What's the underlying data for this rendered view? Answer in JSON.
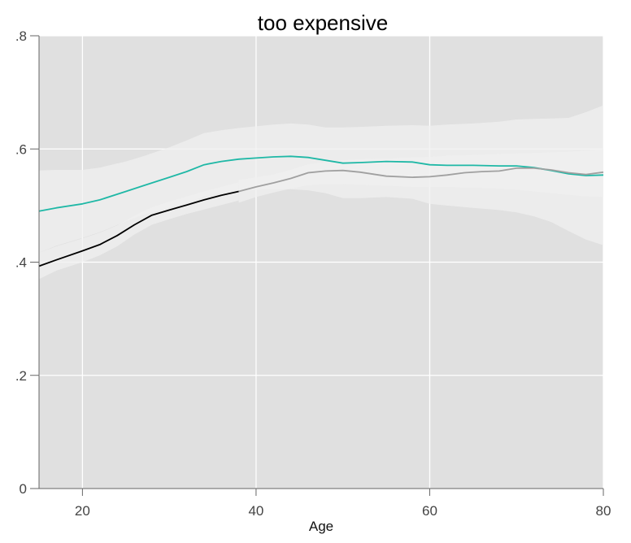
{
  "chart_data": {
    "type": "line",
    "title": "too expensive",
    "xlabel": "Age",
    "ylabel": "",
    "xlim": [
      15,
      80
    ],
    "ylim": [
      0,
      0.8
    ],
    "x_ticks": [
      20,
      40,
      60,
      80
    ],
    "x_tick_labels": [
      "20",
      "40",
      "60",
      "80"
    ],
    "y_ticks": [
      0,
      0.2,
      0.4,
      0.6,
      0.8
    ],
    "y_tick_labels": [
      "0",
      ".2",
      ".4",
      ".6",
      ".8"
    ],
    "grid": true,
    "colors": {
      "panel": "#e0e0e0",
      "grid": "#ffffff",
      "band": "#f0f0f0",
      "teal": "#1fb8a6",
      "black": "#000000",
      "gray": "#a0a0a0"
    },
    "series": [
      {
        "color": "teal",
        "x": [
          15,
          17,
          20,
          22,
          25,
          27,
          30,
          32,
          34,
          36,
          38,
          40,
          42,
          44,
          46,
          48,
          50,
          52,
          55,
          58,
          60,
          62,
          65,
          68,
          70,
          72,
          74,
          76,
          78,
          80
        ],
        "y": [
          0.49,
          0.496,
          0.503,
          0.51,
          0.525,
          0.535,
          0.55,
          0.56,
          0.572,
          0.578,
          0.582,
          0.584,
          0.586,
          0.587,
          0.585,
          0.58,
          0.575,
          0.576,
          0.578,
          0.577,
          0.572,
          0.571,
          0.571,
          0.57,
          0.57,
          0.567,
          0.562,
          0.556,
          0.553,
          0.554
        ],
        "band_upper": [
          0.562,
          0.563,
          0.563,
          0.567,
          0.578,
          0.587,
          0.603,
          0.615,
          0.628,
          0.633,
          0.637,
          0.64,
          0.643,
          0.645,
          0.643,
          0.638,
          0.638,
          0.639,
          0.641,
          0.642,
          0.641,
          0.643,
          0.645,
          0.648,
          0.652,
          0.653,
          0.654,
          0.655,
          0.665,
          0.677
        ],
        "band_lower": [
          0.417,
          0.429,
          0.443,
          0.453,
          0.472,
          0.484,
          0.497,
          0.505,
          0.516,
          0.523,
          0.527,
          0.528,
          0.529,
          0.529,
          0.527,
          0.522,
          0.513,
          0.513,
          0.515,
          0.512,
          0.503,
          0.5,
          0.496,
          0.492,
          0.488,
          0.481,
          0.471,
          0.455,
          0.44,
          0.43
        ]
      },
      {
        "color": "black",
        "x": [
          15,
          17,
          20,
          22,
          24,
          26,
          28,
          30,
          32,
          34,
          36,
          38
        ],
        "y": [
          0.393,
          0.404,
          0.42,
          0.431,
          0.447,
          0.466,
          0.483,
          0.492,
          0.501,
          0.51,
          0.518,
          0.525
        ],
        "band_upper": [
          0.417,
          0.428,
          0.442,
          0.452,
          0.465,
          0.482,
          0.497,
          0.507,
          0.516,
          0.525,
          0.533,
          0.541
        ],
        "band_lower": [
          0.37,
          0.385,
          0.4,
          0.412,
          0.428,
          0.449,
          0.466,
          0.476,
          0.485,
          0.493,
          0.501,
          0.509
        ]
      },
      {
        "color": "gray",
        "x": [
          38,
          40,
          42,
          44,
          46,
          48,
          50,
          52,
          55,
          58,
          60,
          62,
          64,
          66,
          68,
          70,
          72,
          74,
          76,
          78,
          80
        ],
        "y": [
          0.525,
          0.533,
          0.54,
          0.548,
          0.558,
          0.561,
          0.562,
          0.559,
          0.552,
          0.55,
          0.551,
          0.554,
          0.558,
          0.56,
          0.561,
          0.566,
          0.566,
          0.563,
          0.558,
          0.555,
          0.559
        ],
        "band_upper": [
          0.545,
          0.55,
          0.555,
          0.563,
          0.573,
          0.577,
          0.58,
          0.582,
          0.583,
          0.585,
          0.586,
          0.588,
          0.589,
          0.59,
          0.591,
          0.592,
          0.593,
          0.594,
          0.595,
          0.597,
          0.6
        ],
        "band_lower": [
          0.505,
          0.515,
          0.523,
          0.53,
          0.536,
          0.538,
          0.538,
          0.537,
          0.535,
          0.533,
          0.533,
          0.533,
          0.532,
          0.531,
          0.53,
          0.528,
          0.525,
          0.522,
          0.519,
          0.516,
          0.515
        ]
      }
    ]
  }
}
